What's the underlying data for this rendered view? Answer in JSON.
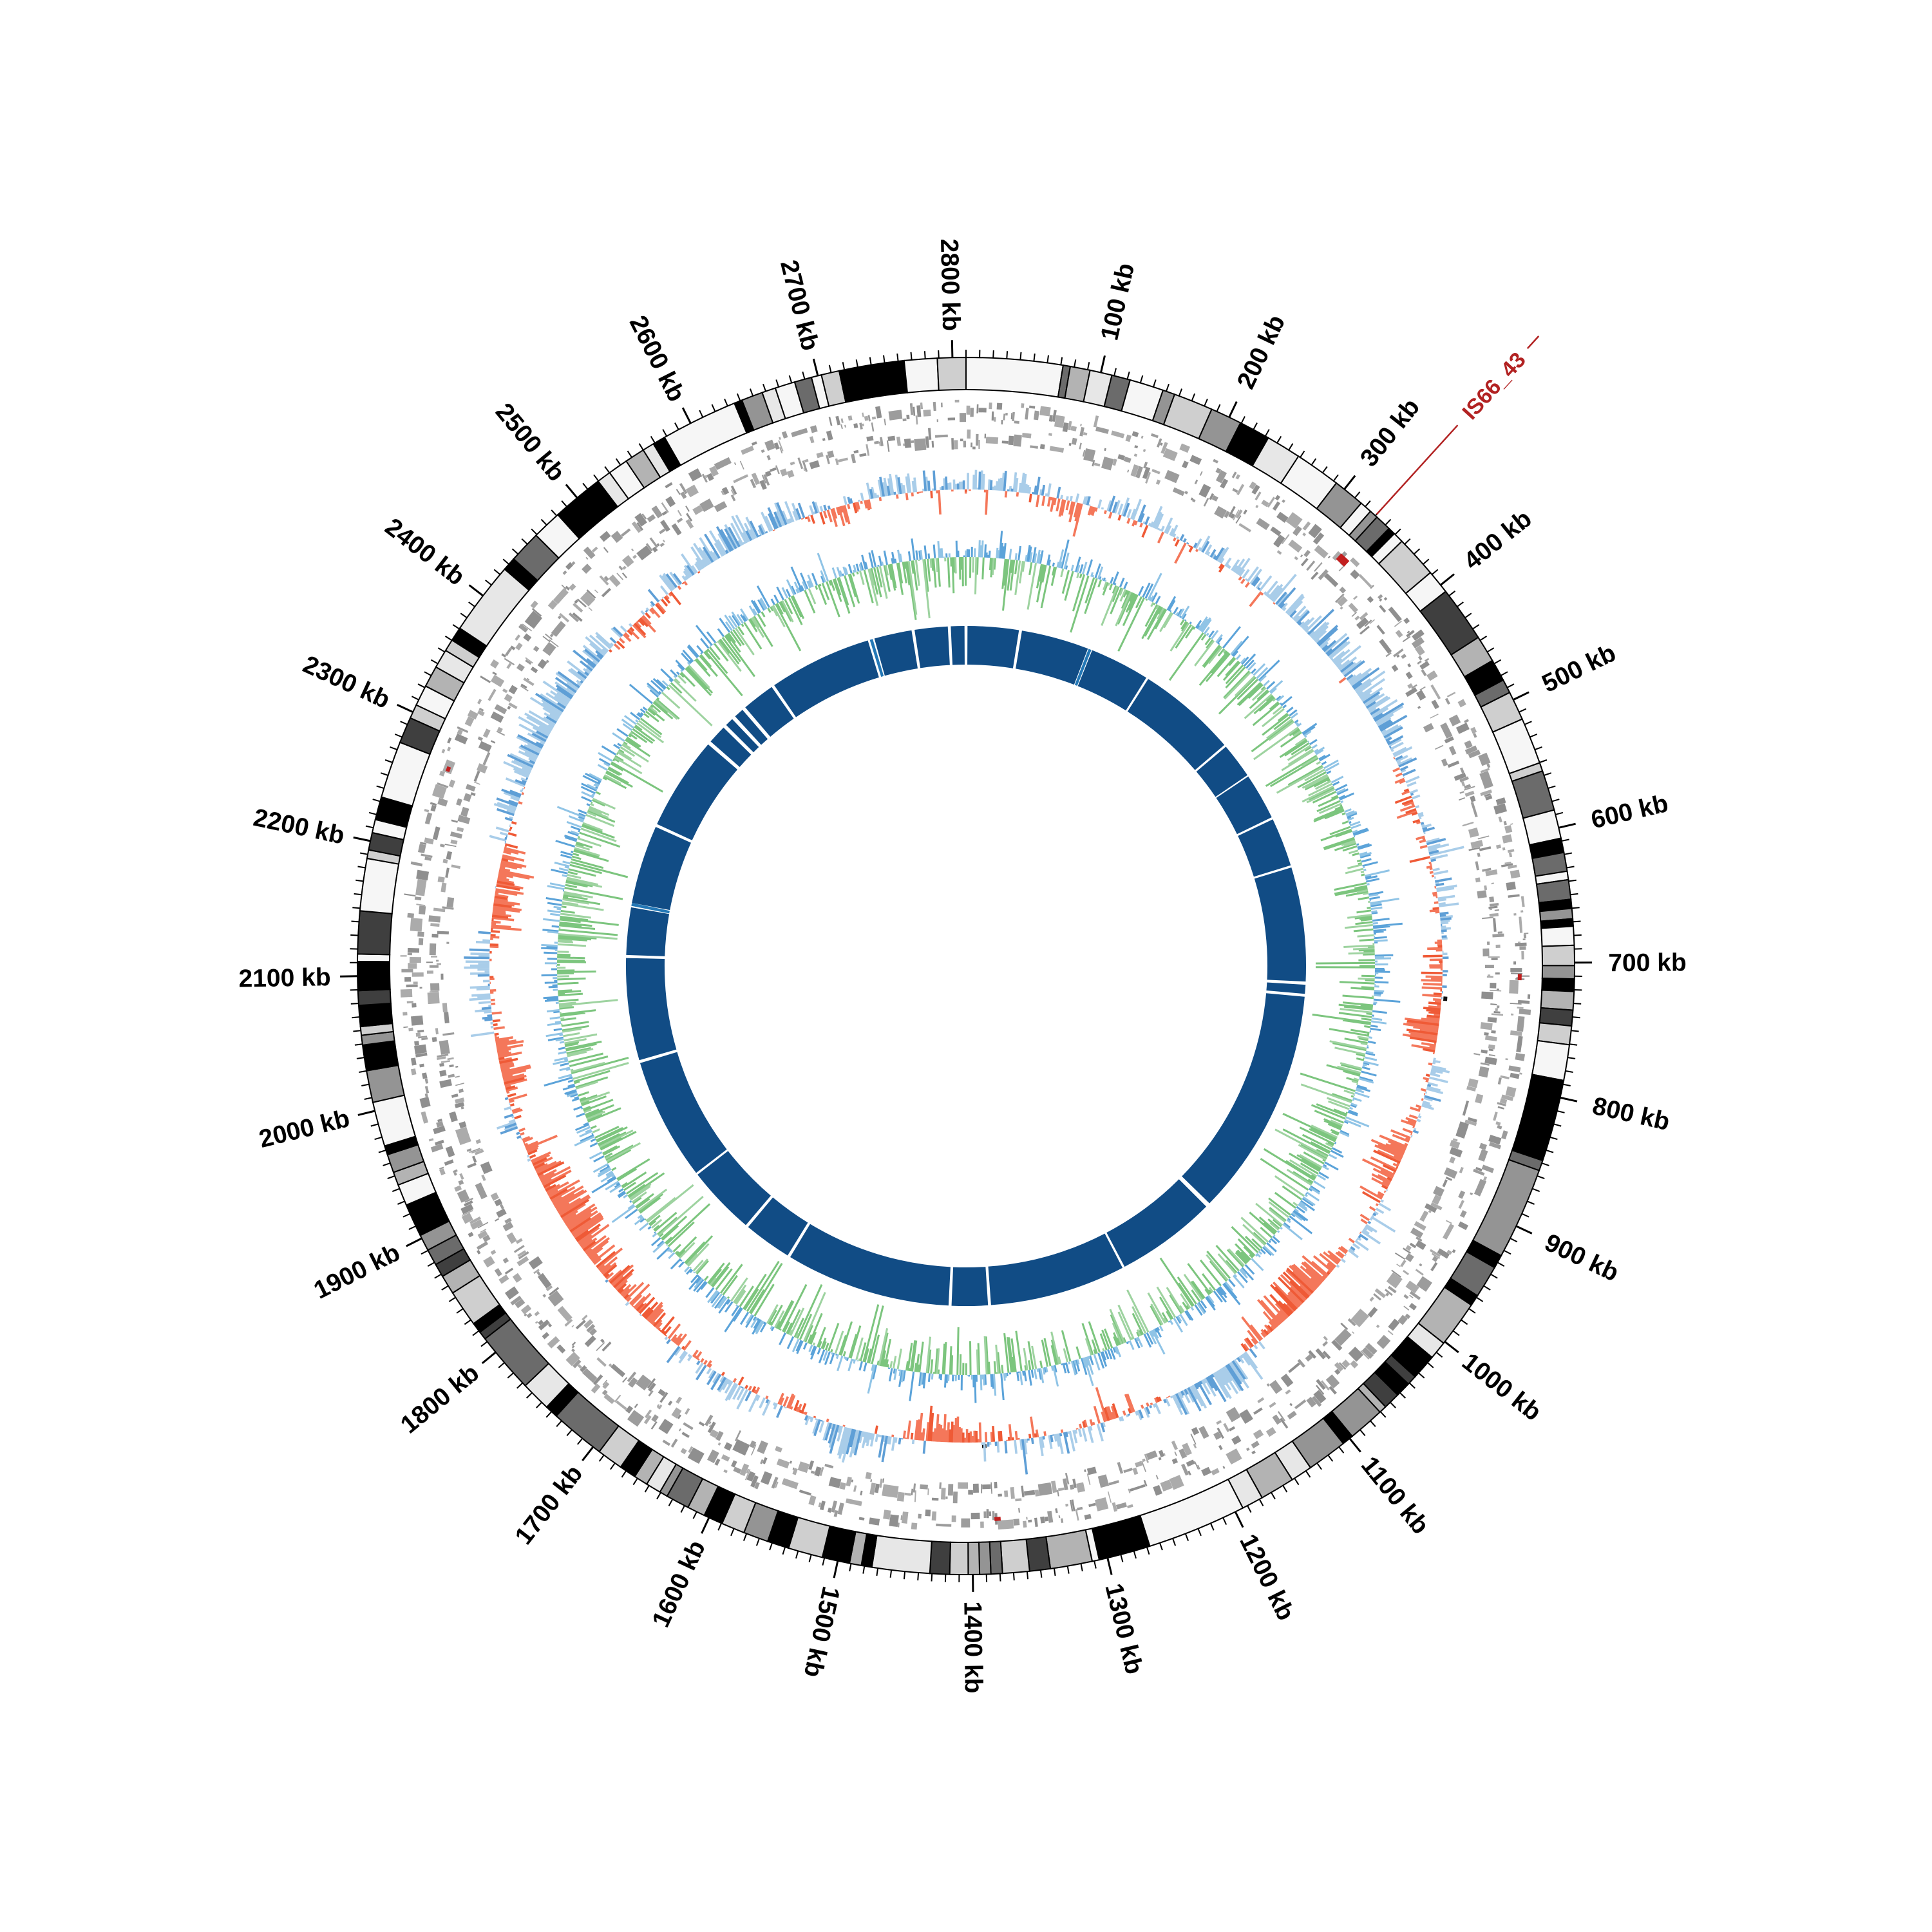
{
  "figure": {
    "kind": "circular-genome-map",
    "background": "#ffffff"
  },
  "chart_data": {
    "type": "circular_genome_map",
    "unit": "kb",
    "genome_length_kb": 2810,
    "direction": "clockwise_from_top",
    "rings_outer_to_inner": [
      "kb-ruler-ticks",
      "grayscale-ideogram",
      "gene-tiles-forward",
      "gene-tiles-reverse",
      "gc-skew (blue outward / coral inward)",
      "gc-content (blue outward / green inward)",
      "alignment-ring-navy"
    ],
    "axis": {
      "major_tick_interval_kb": 100,
      "minor_tick_interval_kb": 10,
      "labels": [
        "100 kb",
        "200 kb",
        "300 kb",
        "400 kb",
        "500 kb",
        "600 kb",
        "700 kb",
        "800 kb",
        "900 kb",
        "1000 kb",
        "1100 kb",
        "1200 kb",
        "1300 kb",
        "1400 kb",
        "1500 kb",
        "1600 kb",
        "1700 kb",
        "1800 kb",
        "1900 kb",
        "2000 kb",
        "2100 kb",
        "2200 kb",
        "2300 kb",
        "2400 kb",
        "2500 kb",
        "2600 kb",
        "2700 kb",
        "2800 kb"
      ]
    },
    "annotations": [
      {
        "label": "IS66_43",
        "position_kb": 330,
        "color": "#b22222"
      }
    ],
    "feature_marks": {
      "red_kb": [
        {
          "pos": 330,
          "len": 9,
          "w": 12
        },
        {
          "pos": 709,
          "len": 5,
          "w": 6
        },
        {
          "pos": 1377,
          "len": 5,
          "w": 6
        },
        {
          "pos": 2268,
          "len": 4,
          "w": 6
        }
      ],
      "black_kb": [
        {
          "pos": 657,
          "len": 4
        },
        {
          "pos": 731,
          "len": 4
        },
        {
          "pos": 1386,
          "len": 4
        },
        {
          "pos": 2337,
          "len": 4
        }
      ]
    },
    "alignment_ring": {
      "segments_kb": [
        [
          2,
          70
        ],
        [
          74,
          164
        ],
        [
          170,
          250
        ],
        [
          253,
          386
        ],
        [
          389,
          436
        ],
        [
          438,
          500
        ],
        [
          503,
          568
        ],
        [
          571,
          723
        ],
        [
          727,
          739
        ],
        [
          743,
          1048
        ],
        [
          1054,
          1188
        ],
        [
          1191,
          1372
        ],
        [
          1376,
          1424
        ],
        [
          1428,
          1648
        ],
        [
          1652,
          1716
        ],
        [
          1720,
          1812
        ],
        [
          1815,
          1978
        ],
        [
          1982,
          2118
        ],
        [
          2122,
          2185
        ],
        [
          2191,
          2296
        ],
        [
          2300,
          2425
        ],
        [
          2430,
          2455
        ],
        [
          2460,
          2471
        ],
        [
          2476,
          2489
        ],
        [
          2494,
          2538
        ],
        [
          2542,
          2679
        ],
        [
          2688,
          2738
        ],
        [
          2742,
          2786
        ],
        [
          2790,
          2808
        ]
      ],
      "light_segments_kb": [
        [
          165,
          169
        ],
        [
          2186.5,
          2190.5
        ],
        [
          2682,
          2686
        ]
      ]
    },
    "gc_skew": {
      "seed": 3,
      "noise_amp": 0.42,
      "spike_prob": 0.05,
      "sample_step_kb": 1.8,
      "bias_points_kb": [
        [
          0,
          0.25
        ],
        [
          60,
          0.15
        ],
        [
          100,
          -0.2
        ],
        [
          140,
          0.2
        ],
        [
          200,
          0.25
        ],
        [
          260,
          0.15
        ],
        [
          330,
          0.3
        ],
        [
          400,
          0.5
        ],
        [
          470,
          0.55
        ],
        [
          520,
          0.1
        ],
        [
          555,
          -0.3
        ],
        [
          590,
          0.2
        ],
        [
          640,
          0.25
        ],
        [
          690,
          -0.15
        ],
        [
          730,
          -0.3
        ],
        [
          765,
          -0.8
        ],
        [
          800,
          0.25
        ],
        [
          845,
          0.2
        ],
        [
          880,
          -0.5
        ],
        [
          930,
          -0.35
        ],
        [
          965,
          0.25
        ],
        [
          1000,
          -0.25
        ],
        [
          1045,
          -0.8
        ],
        [
          1090,
          -0.55
        ],
        [
          1140,
          0.5
        ],
        [
          1175,
          0.45
        ],
        [
          1220,
          0.1
        ],
        [
          1260,
          -0.3
        ],
        [
          1310,
          0.25
        ],
        [
          1360,
          0.1
        ],
        [
          1400,
          -0.25
        ],
        [
          1440,
          -0.65
        ],
        [
          1480,
          0.45
        ],
        [
          1520,
          0.6
        ],
        [
          1565,
          -0.25
        ],
        [
          1600,
          0.2
        ],
        [
          1650,
          0.25
        ],
        [
          1700,
          -0.15
        ],
        [
          1750,
          -0.35
        ],
        [
          1800,
          -0.5
        ],
        [
          1860,
          -0.85
        ],
        [
          1915,
          -0.3
        ],
        [
          1955,
          0.25
        ],
        [
          1995,
          -0.55
        ],
        [
          2030,
          -0.45
        ],
        [
          2070,
          0.2
        ],
        [
          2115,
          0.35
        ],
        [
          2160,
          -0.4
        ],
        [
          2205,
          -0.55
        ],
        [
          2250,
          0.2
        ],
        [
          2300,
          0.5
        ],
        [
          2360,
          0.6
        ],
        [
          2420,
          0.4
        ],
        [
          2470,
          -0.2
        ],
        [
          2520,
          0.25
        ],
        [
          2580,
          0.5
        ],
        [
          2640,
          0.35
        ],
        [
          2690,
          -0.2
        ],
        [
          2730,
          0.25
        ],
        [
          2770,
          0.2
        ],
        [
          2810,
          0.25
        ]
      ]
    },
    "gc_content": {
      "seed": 5,
      "spike_prob": 0.12,
      "sample_step_kb": 1.6
    },
    "gene_tiles": {
      "seed": 11,
      "rows": 2
    },
    "ideogram": {
      "seed": 7,
      "palette": [
        "#f6f6f6",
        "#e7e7e7",
        "#cfcfcf",
        "#b3b3b3",
        "#949494",
        "#6b6b6b",
        "#3f3f3f",
        "#000000"
      ],
      "weights": [
        0.16,
        0.1,
        0.13,
        0.12,
        0.1,
        0.12,
        0.07,
        0.2
      ]
    }
  },
  "colors": {
    "tick": "#000000",
    "label": "#000000",
    "ideogram_stroke": "#000000",
    "gene": [
      "#8f8f8f",
      "#9c9c9c",
      "#ababab"
    ],
    "skew_pos": "#a9cde9",
    "skew_pos_dark": "#5f9fd6",
    "skew_neg": "#f4775a",
    "skew_neg_dark": "#ef5a36",
    "gc_pos": "#5ba3d9",
    "gc_pos_light": "#90c4e6",
    "gc_neg": "#7cc57e",
    "gc_neg_light": "#9ed3a0",
    "alignment": "#114c85",
    "alignment_light": "#2478b6",
    "annotation": "#b22222",
    "feature_red": "#c21f1f",
    "feature_black": "#111111"
  }
}
